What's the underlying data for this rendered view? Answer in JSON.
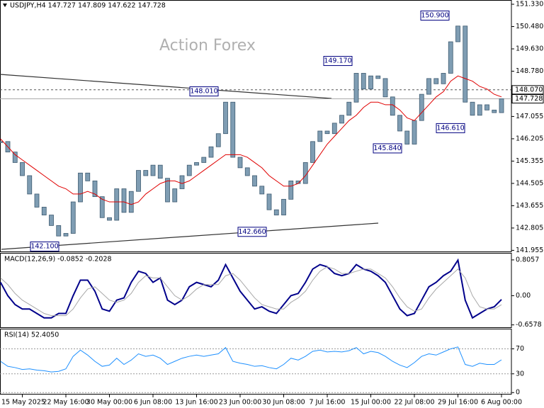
{
  "chart_data": [
    {
      "type": "candlestick",
      "title": "USDJPY,H4  147.727 147.809 147.622 147.728",
      "watermark": "Action Forex",
      "categories": [
        null,
        null,
        null,
        "15 May 2025",
        null,
        null,
        null,
        null,
        null,
        "22 May 16:00",
        null,
        null,
        null,
        null,
        null,
        "30 May 00:00",
        null,
        null,
        null,
        null,
        null,
        "6 Jun 08:00",
        null,
        null,
        null,
        null,
        null,
        "13 Jun 16:00",
        null,
        null,
        null,
        null,
        null,
        "23 Jun 00:00",
        null,
        null,
        null,
        null,
        null,
        "30 Jun 08:00",
        null,
        null,
        null,
        null,
        null,
        "7 Jul 16:00",
        null,
        null,
        null,
        null,
        null,
        "15 Jul 00:00",
        null,
        null,
        null,
        null,
        null,
        "22 Jul 08:00",
        null,
        null,
        null,
        null,
        null,
        "29 Jul 16:00",
        null,
        null,
        null,
        null,
        null,
        "6 Aug 00:00"
      ],
      "values": [
        146.1,
        145.7,
        145.3,
        144.8,
        144.1,
        143.6,
        143.3,
        142.9,
        142.5,
        142.6,
        143.8,
        144.9,
        144.6,
        144.0,
        143.2,
        143.1,
        144.3,
        143.4,
        144.2,
        145.0,
        144.8,
        145.2,
        144.7,
        143.8,
        144.3,
        144.8,
        145.2,
        145.3,
        145.5,
        145.9,
        146.4,
        147.6,
        145.5,
        145.1,
        144.8,
        144.4,
        144.1,
        143.5,
        143.3,
        143.9,
        144.6,
        144.5,
        145.3,
        146.1,
        146.5,
        146.4,
        146.8,
        147.1,
        147.6,
        148.7,
        148.1,
        148.6,
        148.5,
        147.8,
        147.1,
        146.5,
        146.0,
        146.9,
        147.9,
        148.5,
        148.3,
        148.7,
        149.9,
        150.5,
        147.6,
        147.1,
        147.5,
        147.3,
        147.2,
        147.728
      ],
      "color": "#7f9db3",
      "moving_average": {
        "color": "#e00000",
        "values": [
          146.2,
          145.9,
          145.6,
          145.4,
          145.2,
          145.0,
          144.8,
          144.6,
          144.4,
          144.3,
          144.1,
          144.1,
          144.2,
          144.1,
          143.9,
          143.8,
          143.8,
          143.8,
          143.7,
          143.8,
          144.1,
          144.3,
          144.5,
          144.6,
          144.6,
          144.5,
          144.6,
          144.8,
          145.0,
          145.2,
          145.4,
          145.6,
          145.6,
          145.6,
          145.5,
          145.3,
          145.1,
          144.8,
          144.6,
          144.4,
          144.4,
          144.5,
          144.8,
          145.2,
          145.6,
          146.0,
          146.3,
          146.6,
          146.9,
          147.1,
          147.4,
          147.6,
          147.6,
          147.5,
          147.5,
          147.3,
          147.0,
          146.9,
          147.2,
          147.5,
          147.8,
          148.0,
          148.4,
          148.6,
          148.5,
          148.4,
          148.2,
          148.1,
          147.9,
          147.8
        ]
      },
      "ylim": [
        141.885,
        151.465
      ],
      "yticks": [
        {
          "value": 151.33,
          "label": "151.330"
        },
        {
          "value": 150.48,
          "label": "150.480"
        },
        {
          "value": 149.63,
          "label": "149.630"
        },
        {
          "value": 148.78,
          "label": "148.780"
        },
        147.055,
        146.205,
        145.355,
        144.505,
        143.655,
        142.805,
        141.955
      ],
      "hline": {
        "value": 148.07,
        "label": "148.070"
      },
      "last_price": {
        "value": 147.728,
        "label": "147.728"
      },
      "annotations": [
        {
          "value": 150.9,
          "label": "150.900"
        },
        {
          "value": 149.17,
          "label": "149.170"
        },
        {
          "value": 148.01,
          "label": "148.010"
        },
        {
          "value": 146.61,
          "label": "146.610"
        },
        {
          "value": 145.84,
          "label": "145.840"
        },
        {
          "value": 142.66,
          "label": "142.660"
        },
        {
          "value": 142.1,
          "label": "142.100"
        }
      ]
    },
    {
      "type": "line",
      "title": "MACD(12,26,9) -0.0852 -0.2028",
      "series": [
        {
          "color": "#00008b",
          "values": [
            0.3,
            0.0,
            -0.2,
            -0.3,
            -0.3,
            -0.4,
            -0.5,
            -0.5,
            -0.4,
            -0.4,
            0.0,
            0.35,
            0.35,
            0.1,
            -0.3,
            -0.35,
            -0.1,
            -0.05,
            0.3,
            0.55,
            0.5,
            0.3,
            0.4,
            -0.1,
            -0.2,
            -0.1,
            0.2,
            0.3,
            0.25,
            0.2,
            0.35,
            0.7,
            0.4,
            0.1,
            -0.1,
            -0.3,
            -0.25,
            -0.35,
            -0.4,
            -0.2,
            0.0,
            0.05,
            0.3,
            0.6,
            0.7,
            0.65,
            0.5,
            0.45,
            0.5,
            0.7,
            0.6,
            0.55,
            0.45,
            0.3,
            0.0,
            -0.3,
            -0.45,
            -0.4,
            -0.1,
            0.2,
            0.3,
            0.45,
            0.55,
            0.8,
            -0.1,
            -0.5,
            -0.4,
            -0.3,
            -0.25,
            -0.0852
          ]
        },
        {
          "color": "#a8a8a8",
          "values": [
            0.4,
            0.25,
            0.05,
            -0.1,
            -0.2,
            -0.3,
            -0.4,
            -0.45,
            -0.45,
            -0.45,
            -0.3,
            -0.05,
            0.15,
            0.2,
            0.05,
            -0.1,
            -0.15,
            -0.1,
            0.05,
            0.3,
            0.45,
            0.4,
            0.4,
            0.2,
            0.0,
            -0.1,
            0.0,
            0.15,
            0.25,
            0.25,
            0.25,
            0.45,
            0.5,
            0.35,
            0.15,
            -0.05,
            -0.2,
            -0.25,
            -0.3,
            -0.3,
            -0.15,
            -0.05,
            0.1,
            0.35,
            0.55,
            0.65,
            0.6,
            0.5,
            0.5,
            0.55,
            0.6,
            0.6,
            0.5,
            0.4,
            0.2,
            -0.05,
            -0.25,
            -0.35,
            -0.3,
            -0.05,
            0.15,
            0.3,
            0.45,
            0.6,
            0.4,
            0.0,
            -0.25,
            -0.3,
            -0.3,
            -0.2028
          ]
        }
      ],
      "ylim": [
        -0.711,
        0.948
      ],
      "yticks": [
        0.8057,
        {
          "value": 0,
          "label": "0.00"
        },
        -0.6578
      ]
    },
    {
      "type": "line",
      "title": "RSI(14) 52.4050",
      "series": [
        {
          "color": "#1e90ff",
          "values": [
            50,
            42,
            40,
            37,
            38,
            36,
            35,
            33,
            34,
            38,
            58,
            68,
            60,
            50,
            42,
            44,
            55,
            45,
            52,
            62,
            58,
            60,
            55,
            45,
            50,
            55,
            58,
            60,
            58,
            60,
            62,
            72,
            50,
            47,
            45,
            42,
            43,
            40,
            38,
            45,
            55,
            52,
            58,
            66,
            68,
            65,
            66,
            65,
            67,
            72,
            62,
            66,
            64,
            58,
            50,
            44,
            40,
            48,
            58,
            62,
            60,
            65,
            70,
            73,
            45,
            42,
            47,
            45,
            45,
            52.405
          ]
        }
      ],
      "ylim": [
        -2,
        100
      ],
      "yticks": [
        70,
        30,
        0
      ]
    }
  ]
}
